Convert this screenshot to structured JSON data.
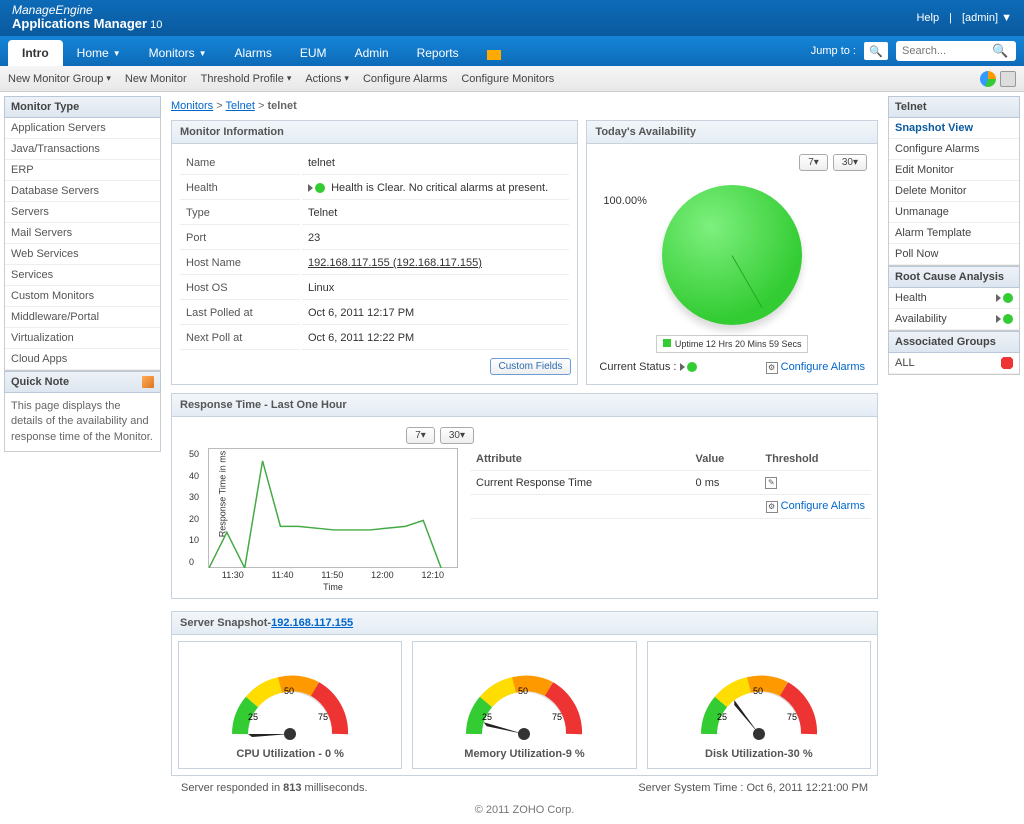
{
  "header": {
    "brand": "ManageEngine",
    "product": "Applications Manager",
    "version": "10",
    "help": "Help",
    "user": "[admin]"
  },
  "nav": {
    "tabs": [
      "Intro",
      "Home",
      "Monitors",
      "Alarms",
      "EUM",
      "Admin",
      "Reports"
    ],
    "active": 0,
    "dropdowns": [
      1,
      2
    ],
    "jump_to": "Jump to :",
    "search_placeholder": "Search..."
  },
  "subnav": {
    "items": [
      "New Monitor Group",
      "New Monitor",
      "Threshold Profile",
      "Actions",
      "Configure Alarms",
      "Configure Monitors"
    ],
    "dropdowns": [
      0,
      2,
      3
    ]
  },
  "sidebar_left": {
    "heading": "Monitor Type",
    "items": [
      "Application Servers",
      "Java/Transactions",
      "ERP",
      "Database Servers",
      "Servers",
      "Mail Servers",
      "Web Services",
      "Services",
      "Custom Monitors",
      "Middleware/Portal",
      "Virtualization",
      "Cloud Apps"
    ],
    "quicknote_heading": "Quick Note",
    "quicknote_body": "This page displays the details of the availability and response time of the Monitor."
  },
  "breadcrumb": {
    "parts": [
      "Monitors",
      "Telnet",
      "telnet"
    ]
  },
  "monitor_info": {
    "heading": "Monitor Information",
    "rows": [
      {
        "k": "Name",
        "v": "telnet"
      },
      {
        "k": "Health",
        "v": "Health is Clear. No critical alarms at present.",
        "health": true
      },
      {
        "k": "Type",
        "v": "Telnet"
      },
      {
        "k": "Port",
        "v": "23"
      },
      {
        "k": "Host Name",
        "v": "192.168.117.155 (192.168.117.155)",
        "link": true
      },
      {
        "k": "Host OS",
        "v": "Linux"
      },
      {
        "k": "Last Polled at",
        "v": "Oct 6, 2011 12:17 PM"
      },
      {
        "k": "Next Poll at",
        "v": "Oct 6, 2011 12:22 PM"
      }
    ],
    "custom_fields_btn": "Custom Fields"
  },
  "availability": {
    "heading": "Today's Availability",
    "btn7": "7",
    "btn30": "30",
    "pct": "100.00%",
    "legend": "Uptime 12 Hrs 20 Mins 59 Secs",
    "status_label": "Current Status :",
    "configure": "Configure Alarms"
  },
  "response_time": {
    "heading": "Response Time - Last One Hour",
    "btn7": "7",
    "btn30": "30",
    "y_label": "Response Time in ms",
    "x_label": "Time",
    "y_ticks": [
      "0",
      "10",
      "20",
      "30",
      "40",
      "50"
    ],
    "x_ticks": [
      "11:30",
      "11:40",
      "11:50",
      "12:00",
      "12:10"
    ],
    "line_points": [
      [
        0,
        100
      ],
      [
        18,
        70
      ],
      [
        36,
        100
      ],
      [
        54,
        10
      ],
      [
        72,
        65
      ],
      [
        90,
        65
      ],
      [
        126,
        68
      ],
      [
        162,
        68
      ],
      [
        198,
        65
      ],
      [
        216,
        60
      ],
      [
        234,
        100
      ]
    ],
    "line_color": "#4a4",
    "attr_heading": "Attribute",
    "val_heading": "Value",
    "thr_heading": "Threshold",
    "attr_row": {
      "name": "Current Response Time",
      "value": "0 ms"
    },
    "configure": "Configure Alarms"
  },
  "snapshot": {
    "heading_prefix": "Server Snapshot-",
    "heading_link": "192.168.117.155",
    "gauges": [
      {
        "label": "CPU Utilization - 0 %",
        "value": 0
      },
      {
        "label": "Memory Utilization-9 %",
        "value": 9
      },
      {
        "label": "Disk Utilization-30 %",
        "value": 30
      }
    ],
    "scale": [
      "25",
      "50",
      "75"
    ]
  },
  "sidebar_right": {
    "sections": [
      {
        "heading": "Telnet",
        "items": [
          {
            "t": "Snapshot View",
            "bold": true
          },
          {
            "t": "Configure Alarms"
          },
          {
            "t": "Edit Monitor"
          },
          {
            "t": "Delete Monitor"
          },
          {
            "t": "Unmanage"
          },
          {
            "t": "Alarm Template"
          },
          {
            "t": "Poll Now"
          }
        ]
      },
      {
        "heading": "Root Cause Analysis",
        "rca": [
          {
            "k": "Health"
          },
          {
            "k": "Availability"
          }
        ]
      },
      {
        "heading": "Associated Groups",
        "items": [
          {
            "t": "ALL",
            "del": true
          }
        ]
      }
    ]
  },
  "footer": {
    "left_a": "Server responded in ",
    "left_b": "813",
    "left_c": " milliseconds.",
    "right": "Server System Time : Oct 6, 2011 12:21:00 PM",
    "copy": "© 2011 ZOHO Corp."
  }
}
